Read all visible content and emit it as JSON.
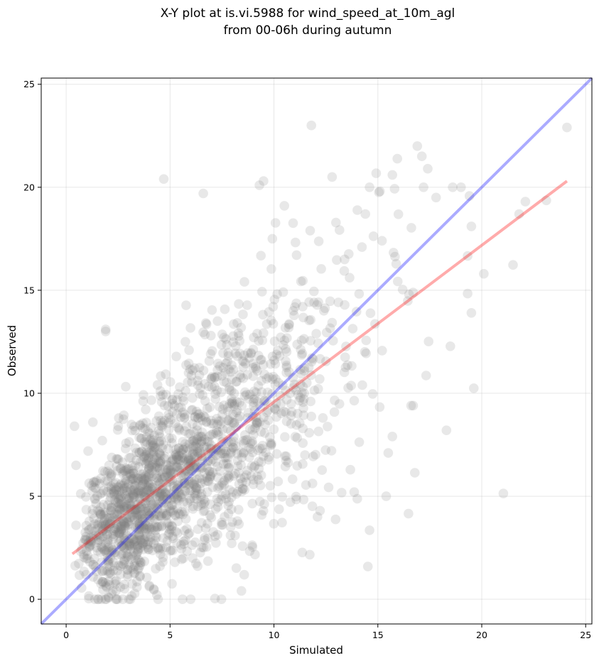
{
  "chart_data": {
    "type": "scatter",
    "title_line1": "X-Y plot at is.vi.5988 for wind_speed_at_10m_agl",
    "title_line2": "from 00-06h during autumn",
    "xlabel": "Simulated",
    "ylabel": "Observed",
    "xlim": [
      -1.2,
      25.3
    ],
    "ylim": [
      -1.2,
      25.3
    ],
    "xticks": [
      0,
      5,
      10,
      15,
      20,
      25
    ],
    "yticks": [
      0,
      5,
      10,
      15,
      20,
      25
    ],
    "grid": true,
    "points": {
      "count": 1800,
      "color": "#808080",
      "alpha": 0.18,
      "x_range": [
        0.3,
        24.2
      ],
      "y_range": [
        0.0,
        23.0
      ],
      "outliers": [
        [
          11.8,
          23.0
        ],
        [
          24.1,
          22.9
        ],
        [
          16.9,
          22.0
        ],
        [
          17.4,
          20.9
        ],
        [
          15.7,
          20.6
        ],
        [
          12.8,
          20.5
        ],
        [
          14.6,
          20.0
        ],
        [
          15.1,
          19.8
        ],
        [
          17.2,
          20.0
        ],
        [
          18.6,
          20.0
        ],
        [
          19.0,
          20.0
        ],
        [
          17.8,
          19.5
        ],
        [
          22.1,
          19.3
        ],
        [
          21.8,
          18.7
        ],
        [
          19.5,
          18.1
        ],
        [
          20.1,
          15.8
        ],
        [
          19.5,
          13.9
        ],
        [
          18.3,
          8.2
        ],
        [
          15.4,
          5.0
        ],
        [
          15.7,
          7.9
        ],
        [
          15.5,
          7.1
        ],
        [
          4.7,
          20.4
        ],
        [
          6.6,
          19.7
        ],
        [
          9.5,
          20.3
        ],
        [
          9.3,
          20.1
        ],
        [
          0.4,
          8.4
        ],
        [
          1.9,
          13.1
        ],
        [
          1.9,
          13.0
        ],
        [
          5.6,
          0.0
        ],
        [
          10.5,
          19.1
        ],
        [
          16.5,
          14.8
        ],
        [
          16.6,
          9.4
        ],
        [
          16.7,
          9.4
        ],
        [
          15.2,
          17.4
        ],
        [
          14.4,
          18.7
        ]
      ]
    },
    "lines": [
      {
        "color": "#0000ff",
        "alpha": 0.33,
        "x": [
          -1.2,
          25.3
        ],
        "y": [
          -1.2,
          25.3
        ]
      },
      {
        "color": "#ff0000",
        "alpha": 0.33,
        "x": [
          0.3,
          24.1
        ],
        "y": [
          2.2,
          20.3
        ]
      }
    ]
  }
}
